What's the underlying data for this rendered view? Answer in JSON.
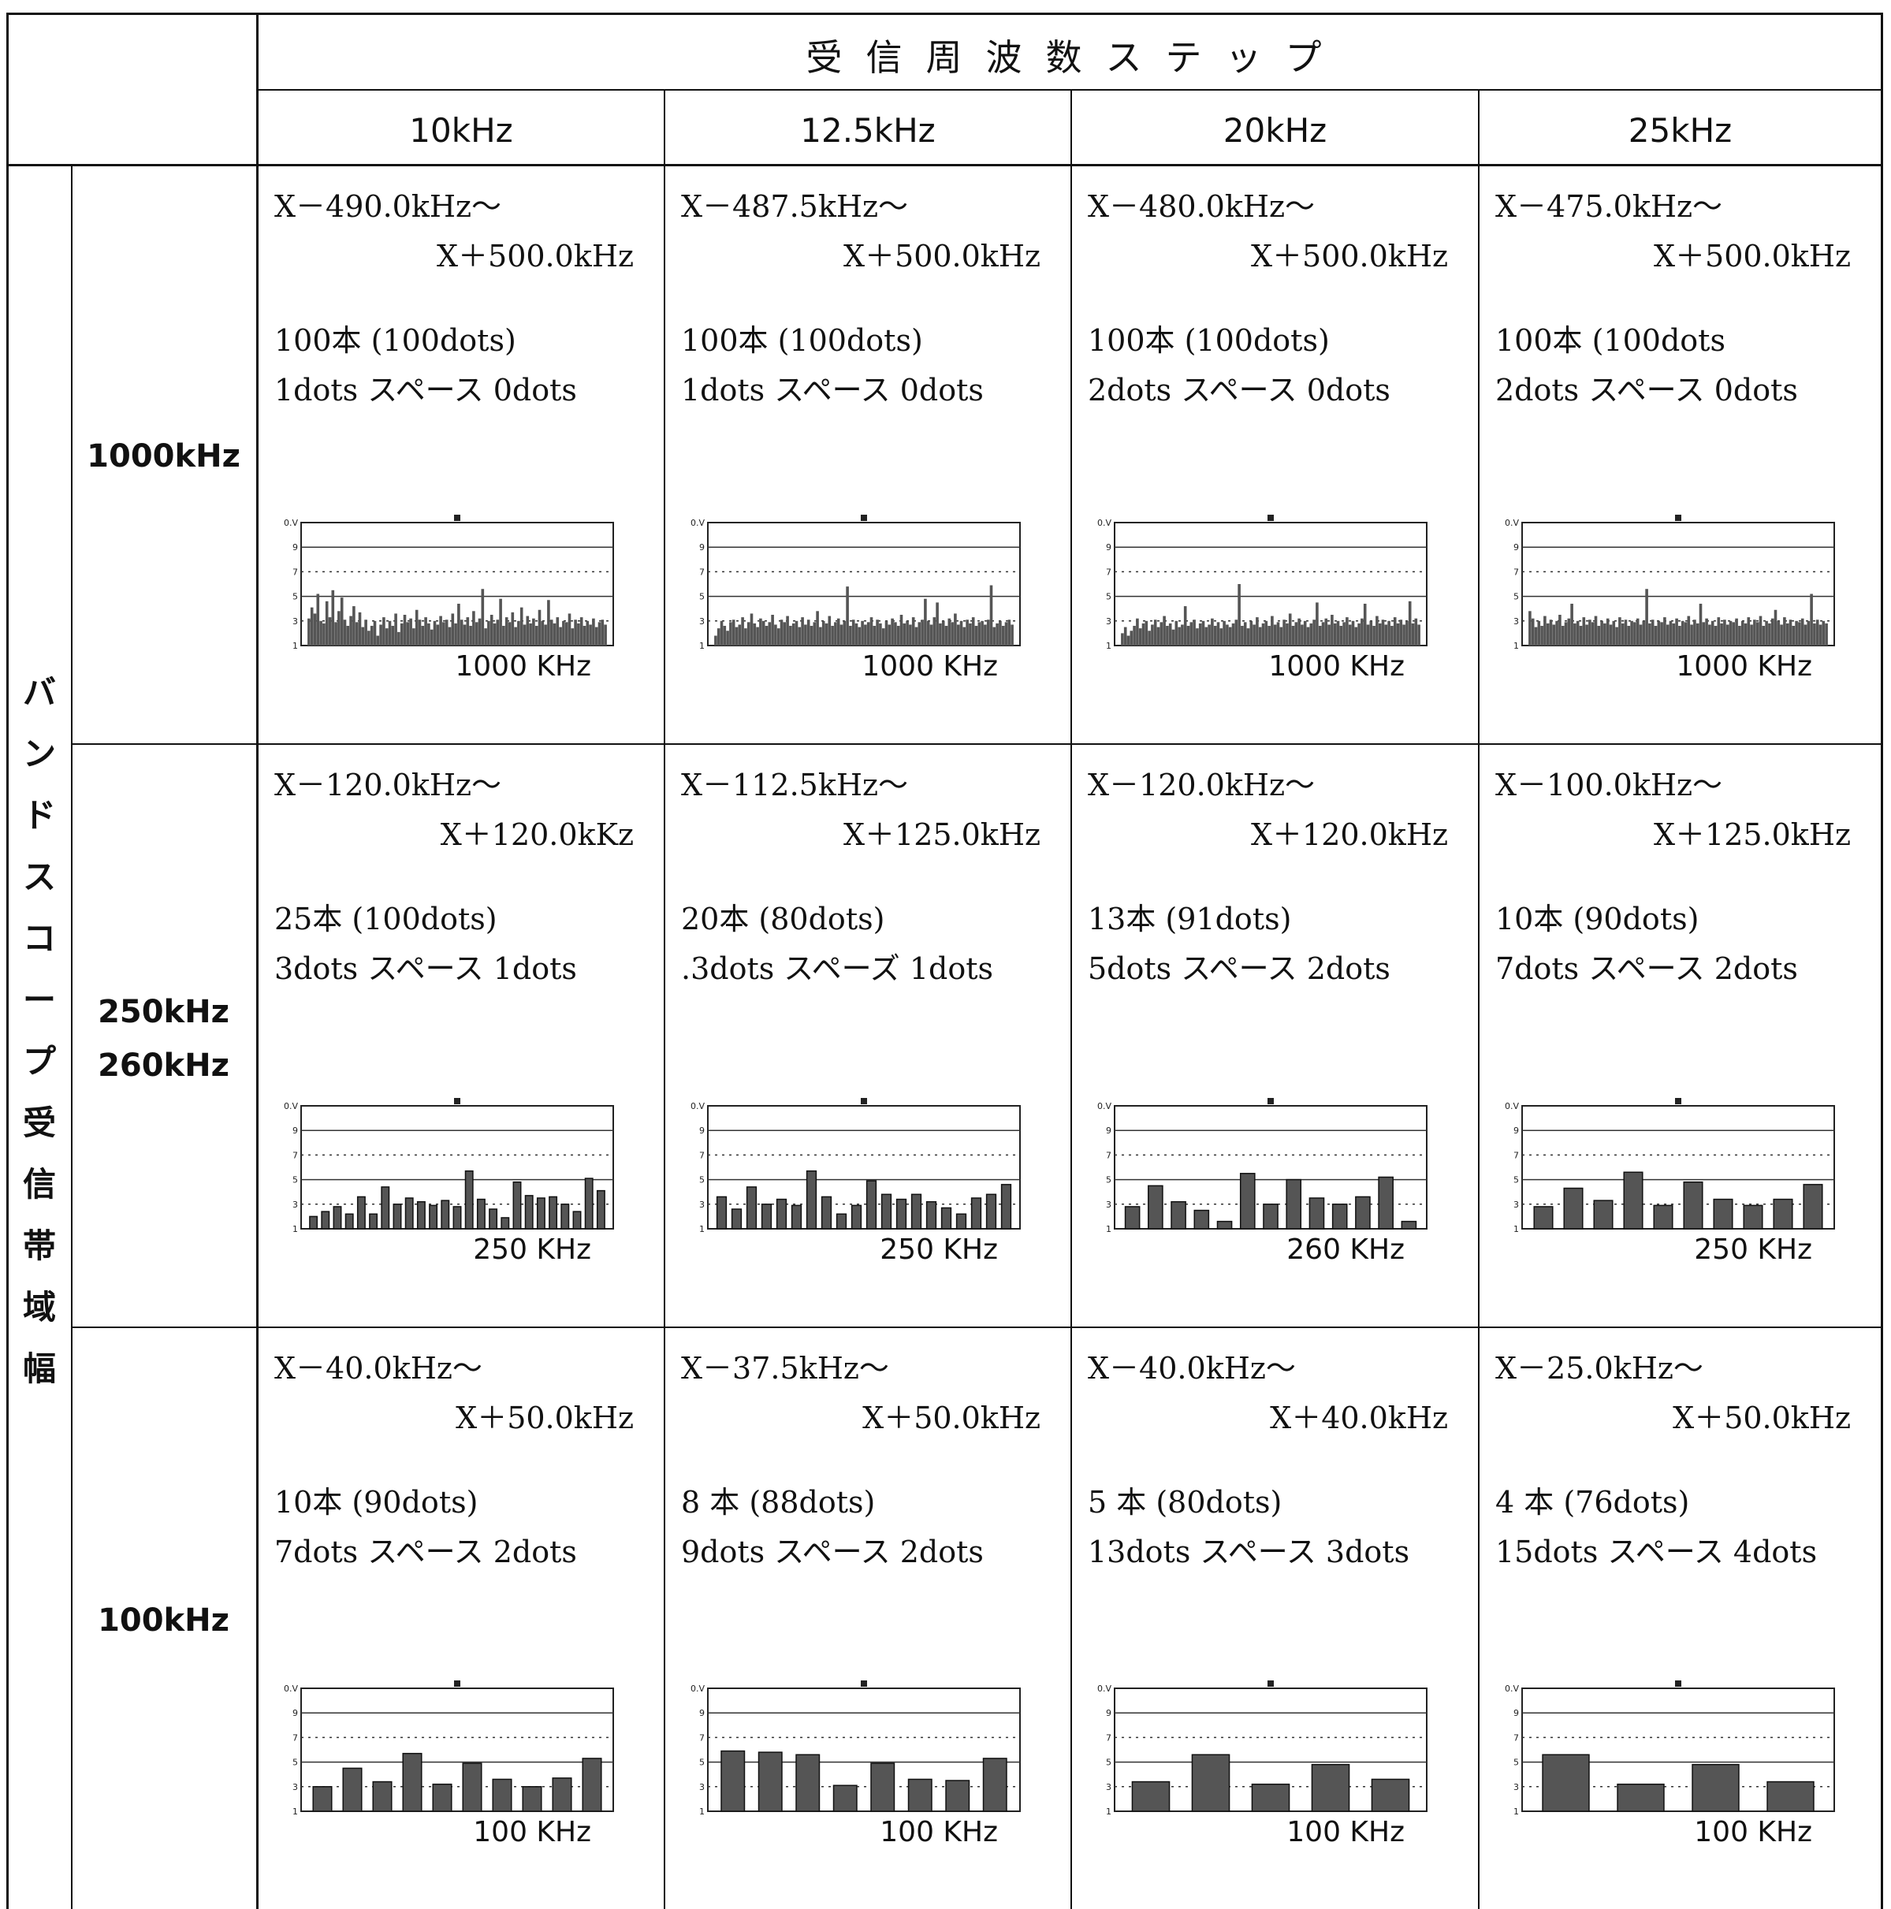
{
  "header": {
    "title": "受信周波数ステップ"
  },
  "vertical_label": [
    "バ",
    "ン",
    "ド",
    "ス",
    "コ",
    "ー",
    "プ",
    "受",
    "信",
    "帯",
    "域",
    "幅"
  ],
  "columns": [
    "10kHz",
    "12.5kHz",
    "20kHz",
    "25kHz"
  ],
  "rows": [
    {
      "label_lines": [
        "1000kHz"
      ],
      "cells": [
        {
          "range_low": "X－490.0kHz～",
          "range_high": "X＋500.0kHz",
          "bars": "100本 (100dots)",
          "dots": "1dots スペース 0dots",
          "scope_freq": "1000 KHz"
        },
        {
          "range_low": "X－487.5kHz～",
          "range_high": "X＋500.0kHz",
          "bars": "100本 (100dots)",
          "dots": "1dots スペース 0dots",
          "scope_freq": "1000 KHz"
        },
        {
          "range_low": "X－480.0kHz～",
          "range_high": "X＋500.0kHz",
          "bars": "100本 (100dots)",
          "dots": "2dots スペース 0dots",
          "scope_freq": "1000 KHz"
        },
        {
          "range_low": "X－475.0kHz～",
          "range_high": "X＋500.0kHz",
          "bars": "100本 (100dots",
          "dots": "2dots スペース 0dots",
          "scope_freq": "1000 KHz"
        }
      ]
    },
    {
      "label_lines": [
        "250kHz",
        "260kHz"
      ],
      "cells": [
        {
          "range_low": "X－120.0kHz～",
          "range_high": "X＋120.0kKz",
          "bars": "25本 (100dots)",
          "dots": "3dots スペース 1dots",
          "scope_freq": "250 KHz"
        },
        {
          "range_low": "X－112.5kHz～",
          "range_high": "X＋125.0kHz",
          "bars": "20本 (80dots)",
          "dots": ".3dots スペーズ 1dots",
          "scope_freq": "250 KHz"
        },
        {
          "range_low": "X－120.0kHz～",
          "range_high": "X＋120.0kHz",
          "bars": "13本 (91dots)",
          "dots": "5dots スペース 2dots",
          "scope_freq": "260 KHz"
        },
        {
          "range_low": "X－100.0kHz～",
          "range_high": "X＋125.0kHz",
          "bars": "10本 (90dots)",
          "dots": "7dots スペース 2dots",
          "scope_freq": "250 KHz"
        }
      ]
    },
    {
      "label_lines": [
        "100kHz"
      ],
      "cells": [
        {
          "range_low": "X－40.0kHz～",
          "range_high": "X＋50.0kHz",
          "bars": "10本 (90dots)",
          "dots": "7dots スペース 2dots",
          "scope_freq": "100 KHz"
        },
        {
          "range_low": "X－37.5kHz～",
          "range_high": "X＋50.0kHz",
          "bars": "8 本 (88dots)",
          "dots": "9dots スペース 2dots",
          "scope_freq": "100 KHz"
        },
        {
          "range_low": "X－40.0kHz～",
          "range_high": "X＋40.0kHz",
          "bars": "5 本 (80dots)",
          "dots": "13dots スペース 3dots",
          "scope_freq": "100 KHz"
        },
        {
          "range_low": "X－25.0kHz～",
          "range_high": "X＋50.0kHz",
          "bars": "4 本 (76dots)",
          "dots": "15dots スペース 4dots",
          "scope_freq": "100 KHz"
        }
      ]
    }
  ],
  "scope_axis": {
    "labels": [
      "0.V",
      "9",
      "7",
      "5",
      "3",
      "1"
    ]
  },
  "scope_bars": [
    [
      {
        "count": 100,
        "levels": [
          3.2,
          4.1,
          3.6,
          5.2,
          3.0,
          2.8,
          4.6,
          3.3,
          5.5,
          2.9,
          3.8,
          4.9,
          3.1,
          2.6,
          3.4,
          4.2,
          2.9,
          3.7,
          2.5,
          3.1,
          2.2,
          2.6,
          3.0,
          1.8,
          2.7,
          3.3,
          2.4,
          3.0,
          2.6,
          3.6,
          2.1,
          2.8,
          3.5,
          2.9,
          3.2,
          2.4,
          3.9,
          3.1,
          2.6,
          3.3,
          2.8,
          2.3,
          3.0,
          2.7,
          3.4,
          2.9,
          3.1,
          2.5,
          3.6,
          2.8,
          4.4,
          3.1,
          2.7,
          3.3,
          2.6,
          3.8,
          2.9,
          3.2,
          5.6,
          2.4,
          3.0,
          3.5,
          2.8,
          3.1,
          4.8,
          2.6,
          3.3,
          2.9,
          3.7,
          2.5,
          3.0,
          4.1,
          2.7,
          3.4,
          2.8,
          3.2,
          2.6,
          3.9,
          3.0,
          2.7,
          4.7,
          3.1,
          2.8,
          3.3,
          2.5,
          3.0,
          2.9,
          3.6,
          2.4,
          3.1,
          2.8,
          3.3,
          2.6,
          3.0,
          2.7,
          3.2,
          2.5,
          2.9,
          3.1,
          2.7
        ]
      },
      {
        "count": 100,
        "levels": [
          1.8,
          2.4,
          3.0,
          2.6,
          2.2,
          2.9,
          3.1,
          2.5,
          2.7,
          3.3,
          2.4,
          2.9,
          3.6,
          2.8,
          2.5,
          3.2,
          3.0,
          2.6,
          2.9,
          3.5,
          2.7,
          2.4,
          3.1,
          2.9,
          3.4,
          2.6,
          2.8,
          3.0,
          2.5,
          3.3,
          2.7,
          3.1,
          2.6,
          2.9,
          3.8,
          2.5,
          3.0,
          2.8,
          3.4,
          2.6,
          2.9,
          3.2,
          2.7,
          3.0,
          5.8,
          2.6,
          3.1,
          2.8,
          2.5,
          3.0,
          2.7,
          2.9,
          3.3,
          2.6,
          3.1,
          2.8,
          2.4,
          3.0,
          2.7,
          3.2,
          2.9,
          2.6,
          3.5,
          2.8,
          3.0,
          2.7,
          3.3,
          2.5,
          2.9,
          3.1,
          4.8,
          3.0,
          2.7,
          3.3,
          4.5,
          2.8,
          3.0,
          2.6,
          3.2,
          2.9,
          3.6,
          2.7,
          3.0,
          2.5,
          3.1,
          2.8,
          3.3,
          2.6,
          2.9,
          3.0,
          2.7,
          3.1,
          5.9,
          2.5,
          2.8,
          3.0,
          2.6,
          2.9,
          3.1,
          2.7
        ]
      },
      {
        "count": 100,
        "levels": [
          2.0,
          2.5,
          1.8,
          2.2,
          2.6,
          3.2,
          2.4,
          2.8,
          3.0,
          2.2,
          2.7,
          3.1,
          2.5,
          2.9,
          3.4,
          2.6,
          2.8,
          2.3,
          3.0,
          2.5,
          2.7,
          4.2,
          2.6,
          2.9,
          3.1,
          2.4,
          2.8,
          3.0,
          2.5,
          2.7,
          3.2,
          2.6,
          2.9,
          2.4,
          3.0,
          2.7,
          2.5,
          2.8,
          3.1,
          6.0,
          2.6,
          2.9,
          2.4,
          3.0,
          2.7,
          3.3,
          2.5,
          2.8,
          3.0,
          2.6,
          3.4,
          2.7,
          2.9,
          2.5,
          3.1,
          2.8,
          3.6,
          2.6,
          2.9,
          3.2,
          2.7,
          3.0,
          2.5,
          2.8,
          3.1,
          4.5,
          2.6,
          2.9,
          3.2,
          2.7,
          3.5,
          2.8,
          3.0,
          2.6,
          2.9,
          3.3,
          2.7,
          3.0,
          2.5,
          2.8,
          3.2,
          4.4,
          2.7,
          3.0,
          2.6,
          3.4,
          2.8,
          3.1,
          2.7,
          3.0,
          2.6,
          3.3,
          2.8,
          3.1,
          2.7,
          3.0,
          4.6,
          2.8,
          3.2,
          2.7
        ]
      },
      {
        "count": 100,
        "levels": [
          3.8,
          3.2,
          2.5,
          3.0,
          2.6,
          3.4,
          2.8,
          3.1,
          2.7,
          3.0,
          3.5,
          2.6,
          2.9,
          3.2,
          4.4,
          2.8,
          3.0,
          2.6,
          3.3,
          2.7,
          3.1,
          2.9,
          3.4,
          2.6,
          3.0,
          2.8,
          3.2,
          2.7,
          3.0,
          2.5,
          3.3,
          2.8,
          3.1,
          2.6,
          3.0,
          2.9,
          3.2,
          2.7,
          3.0,
          5.6,
          2.8,
          3.1,
          2.6,
          3.0,
          2.9,
          3.3,
          2.7,
          3.0,
          2.8,
          3.2,
          2.6,
          3.0,
          2.9,
          3.4,
          2.7,
          3.1,
          2.8,
          4.4,
          2.9,
          3.2,
          2.7,
          3.0,
          2.6,
          3.3,
          2.8,
          3.1,
          2.7,
          3.0,
          2.9,
          3.2,
          2.6,
          3.0,
          2.8,
          3.3,
          2.7,
          3.1,
          2.9,
          3.4,
          2.6,
          3.0,
          2.8,
          3.2,
          3.9,
          3.0,
          2.7,
          3.3,
          2.8,
          3.1,
          2.6,
          3.0,
          2.9,
          3.2,
          2.7,
          3.0,
          5.2,
          2.8,
          3.1,
          2.7,
          3.0,
          2.8
        ]
      }
    ],
    [
      {
        "count": 25,
        "levels": [
          2.0,
          2.4,
          2.8,
          2.2,
          3.6,
          2.2,
          4.4,
          3.0,
          3.5,
          3.2,
          2.9,
          3.3,
          2.8,
          5.7,
          3.4,
          2.6,
          1.9,
          4.8,
          3.7,
          3.5,
          3.6,
          3.0,
          2.4,
          5.1,
          4.1
        ]
      },
      {
        "count": 20,
        "levels": [
          3.6,
          2.6,
          4.4,
          3.0,
          3.4,
          2.9,
          5.7,
          3.6,
          2.2,
          2.9,
          4.9,
          3.8,
          3.4,
          3.8,
          3.2,
          2.7,
          2.2,
          3.5,
          3.8,
          4.6
        ]
      },
      {
        "count": 13,
        "levels": [
          2.8,
          4.5,
          3.2,
          2.5,
          1.6,
          5.5,
          3.0,
          5.0,
          3.5,
          3.0,
          3.6,
          5.2,
          1.6
        ]
      },
      {
        "count": 10,
        "levels": [
          2.8,
          4.3,
          3.3,
          5.6,
          2.9,
          4.8,
          3.4,
          2.9,
          3.4,
          4.6
        ]
      }
    ],
    [
      {
        "count": 10,
        "levels": [
          3.0,
          4.5,
          3.4,
          5.7,
          3.2,
          4.9,
          3.6,
          3.0,
          3.7,
          5.3
        ]
      },
      {
        "count": 8,
        "levels": [
          5.9,
          5.8,
          5.6,
          3.1,
          4.9,
          3.6,
          3.5,
          5.3
        ]
      },
      {
        "count": 5,
        "levels": [
          3.4,
          5.6,
          3.2,
          4.8,
          3.6
        ]
      },
      {
        "count": 4,
        "levels": [
          5.6,
          3.2,
          4.8,
          3.4
        ]
      }
    ]
  ]
}
